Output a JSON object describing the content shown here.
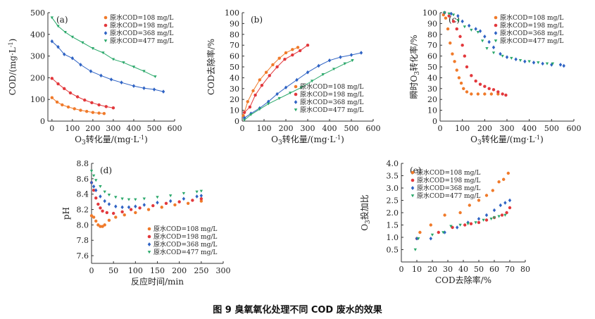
{
  "caption": "图 9   臭氧氧化处理不同 COD 废水的效果",
  "series_names": [
    "原水COD=108 mg/L",
    "原水COD=198 mg/L",
    "原水COD=368 mg/L",
    "原水COD=477 mg/L"
  ],
  "colors": [
    "#f07a2a",
    "#e2383c",
    "#2f63c4",
    "#2aa86a"
  ],
  "markers": [
    "circle",
    "circle",
    "diamond",
    "triangle-down"
  ],
  "chart_data": [
    {
      "panel": "(a)",
      "type": "scatter",
      "xlabel": "O3转化量/(mg·L⁻¹)",
      "ylabel": "COD/(mg·L⁻¹)",
      "xlim": [
        -20,
        600
      ],
      "ylim": [
        0,
        500
      ],
      "xticks": [
        0,
        100,
        200,
        300,
        400,
        500,
        600
      ],
      "yticks": [
        0,
        100,
        200,
        300,
        400,
        500
      ],
      "fit": true,
      "series": [
        {
          "name": "原水COD=108 mg/L",
          "x": [
            0,
            25,
            50,
            80,
            110,
            140,
            170,
            200,
            230,
            255
          ],
          "y": [
            108,
            88,
            75,
            65,
            57,
            50,
            45,
            40,
            37,
            35
          ]
        },
        {
          "name": "原水COD=198 mg/L",
          "x": [
            0,
            30,
            60,
            90,
            125,
            160,
            195,
            230,
            265,
            300
          ],
          "y": [
            197,
            172,
            150,
            130,
            112,
            97,
            85,
            75,
            67,
            61
          ]
        },
        {
          "name": "原水COD=368 mg/L",
          "x": [
            0,
            30,
            60,
            100,
            140,
            190,
            240,
            290,
            340,
            400,
            450,
            500,
            545
          ],
          "y": [
            368,
            342,
            308,
            290,
            260,
            230,
            210,
            192,
            178,
            162,
            152,
            146,
            136
          ]
        },
        {
          "name": "原水COD=477 mg/L",
          "x": [
            0,
            30,
            65,
            100,
            150,
            200,
            250,
            300,
            350,
            400,
            450,
            505
          ],
          "y": [
            477,
            438,
            410,
            388,
            362,
            335,
            315,
            285,
            270,
            250,
            230,
            205
          ]
        }
      ]
    },
    {
      "panel": "(b)",
      "type": "scatter",
      "xlabel": "O3转化量/(mg·L⁻¹)",
      "ylabel": "COD去除率/%",
      "xlim": [
        0,
        600
      ],
      "ylim": [
        0,
        100
      ],
      "xticks": [
        0,
        100,
        200,
        300,
        400,
        500,
        600
      ],
      "yticks": [
        0,
        10,
        20,
        30,
        40,
        50,
        60,
        70,
        80,
        90,
        100
      ],
      "fit": true,
      "series": [
        {
          "name": "原水COD=108 mg/L",
          "x": [
            5,
            25,
            50,
            80,
            110,
            140,
            170,
            200,
            230,
            255
          ],
          "y": [
            5,
            18,
            28,
            38,
            45,
            52,
            58,
            63,
            66,
            68
          ]
        },
        {
          "name": "原水COD=198 mg/L",
          "x": [
            10,
            35,
            60,
            90,
            125,
            160,
            195,
            230,
            265,
            300
          ],
          "y": [
            8,
            13,
            24,
            33,
            42,
            50,
            57,
            61,
            65,
            70
          ]
        },
        {
          "name": "原水COD=368 mg/L",
          "x": [
            10,
            40,
            80,
            120,
            160,
            200,
            250,
            300,
            350,
            400,
            450,
            500,
            545
          ],
          "y": [
            3,
            7,
            12,
            18,
            25,
            31,
            38,
            45,
            51,
            56,
            59,
            61,
            63
          ]
        },
        {
          "name": "原水COD=477 mg/L",
          "x": [
            10,
            40,
            80,
            120,
            170,
            220,
            270,
            320,
            370,
            420,
            470,
            505
          ],
          "y": [
            1,
            6,
            11,
            16,
            21,
            26,
            31,
            37,
            43,
            48,
            53,
            56
          ]
        }
      ]
    },
    {
      "panel": "(c)",
      "type": "scatter",
      "xlabel": "O3转化量/(mg·L⁻¹)",
      "ylabel": "瞬时O3转化率/%",
      "xlim": [
        0,
        600
      ],
      "ylim": [
        0,
        100
      ],
      "xticks": [
        0,
        100,
        200,
        300,
        400,
        500,
        600
      ],
      "yticks": [
        0,
        10,
        20,
        30,
        40,
        50,
        60,
        70,
        80,
        90,
        100
      ],
      "fit": false,
      "series": [
        {
          "name": "原水COD=108 mg/L",
          "x": [
            15,
            25,
            35,
            45,
            55,
            65,
            75,
            85,
            95,
            105,
            120,
            140,
            170,
            200,
            230,
            260
          ],
          "y": [
            98,
            95,
            85,
            72,
            62,
            55,
            47,
            40,
            35,
            30,
            27,
            25,
            25,
            25,
            25,
            25
          ]
        },
        {
          "name": "原水COD=198 mg/L",
          "x": [
            20,
            40,
            60,
            75,
            90,
            100,
            110,
            120,
            140,
            160,
            180,
            200,
            220,
            240,
            260,
            280,
            295
          ],
          "y": [
            100,
            97,
            92,
            85,
            78,
            70,
            60,
            50,
            42,
            37,
            34,
            32,
            30,
            29,
            27,
            25,
            24
          ]
        },
        {
          "name": "原水COD=368 mg/L",
          "x": [
            20,
            50,
            80,
            100,
            130,
            160,
            180,
            200,
            220,
            240,
            270,
            300,
            340,
            380,
            420,
            460,
            500,
            540,
            555
          ],
          "y": [
            100,
            99,
            97,
            92,
            88,
            85,
            83,
            78,
            73,
            68,
            62,
            59,
            57,
            55,
            54,
            53,
            52,
            52,
            51
          ]
        },
        {
          "name": "原水COD=477 mg/L",
          "x": [
            20,
            40,
            60,
            80,
            110,
            140,
            170,
            190,
            210,
            240,
            280,
            320,
            360,
            400,
            440,
            480,
            505
          ],
          "y": [
            100,
            99,
            98,
            93,
            87,
            84,
            82,
            74,
            67,
            63,
            60,
            58,
            56,
            55,
            54,
            53,
            53
          ]
        }
      ]
    },
    {
      "panel": "(d)",
      "type": "scatter",
      "xlabel": "反应时间/min",
      "ylabel": "pH",
      "xlim": [
        0,
        300
      ],
      "ylim": [
        7.5,
        8.8
      ],
      "xticks": [
        0,
        50,
        100,
        150,
        200,
        250,
        300
      ],
      "yticks": [
        7.6,
        7.8,
        8.0,
        8.2,
        8.4,
        8.6,
        8.8
      ],
      "fit": false,
      "series": [
        {
          "name": "原水COD=108 mg/L",
          "x": [
            0,
            5,
            10,
            15,
            20,
            25,
            30,
            40,
            55,
            75,
            100,
            130,
            160,
            190,
            220,
            250
          ],
          "y": [
            8.12,
            8.1,
            8.05,
            8.0,
            7.98,
            7.98,
            8.0,
            8.06,
            8.1,
            8.13,
            8.16,
            8.2,
            8.23,
            8.26,
            8.28,
            8.31
          ]
        },
        {
          "name": "原水COD=198 mg/L",
          "x": [
            0,
            5,
            10,
            15,
            20,
            25,
            35,
            50,
            70,
            90,
            110,
            140,
            170,
            200,
            230,
            250
          ],
          "y": [
            8.55,
            8.45,
            8.35,
            8.27,
            8.22,
            8.18,
            8.16,
            8.15,
            8.17,
            8.2,
            8.22,
            8.25,
            8.28,
            8.3,
            8.32,
            8.34
          ]
        },
        {
          "name": "原水COD=368 mg/L",
          "x": [
            0,
            5,
            10,
            20,
            30,
            40,
            55,
            70,
            85,
            100,
            120,
            150,
            180,
            210,
            240,
            250
          ],
          "y": [
            8.55,
            8.5,
            8.45,
            8.37,
            8.31,
            8.27,
            8.24,
            8.23,
            8.23,
            8.24,
            8.26,
            8.29,
            8.31,
            8.34,
            8.37,
            8.38
          ]
        },
        {
          "name": "原水COD=477 mg/L",
          "x": [
            0,
            5,
            10,
            20,
            30,
            40,
            55,
            70,
            85,
            100,
            120,
            150,
            180,
            210,
            240,
            250
          ],
          "y": [
            8.7,
            8.64,
            8.58,
            8.5,
            8.43,
            8.39,
            8.36,
            8.34,
            8.33,
            8.33,
            8.34,
            8.36,
            8.38,
            8.41,
            8.43,
            8.44
          ]
        }
      ]
    },
    {
      "panel": "(e)",
      "type": "scatter",
      "xlabel": "COD去除率/%",
      "ylabel": "O3投加比",
      "xlim": [
        0,
        80
      ],
      "ylim": [
        0,
        4.0
      ],
      "xticks": [
        0,
        10,
        20,
        30,
        40,
        50,
        60,
        70,
        80
      ],
      "yticks": [
        0.5,
        1.0,
        1.5,
        2.0,
        2.5,
        3.0,
        3.5,
        4.0
      ],
      "fit": false,
      "series": [
        {
          "name": "原水COD=108 mg/L",
          "x": [
            12,
            19,
            28,
            38,
            44,
            50,
            55,
            59,
            63,
            66,
            69
          ],
          "y": [
            1.2,
            1.5,
            1.9,
            2.0,
            2.3,
            2.5,
            2.7,
            2.9,
            3.25,
            3.35,
            3.6
          ]
        },
        {
          "name": "原水COD=198 mg/L",
          "x": [
            10,
            24,
            33,
            41,
            45,
            50,
            55,
            60,
            65,
            68,
            70
          ],
          "y": [
            0.95,
            1.2,
            1.4,
            1.5,
            1.55,
            1.6,
            1.7,
            1.8,
            1.9,
            2.0,
            2.2
          ]
        },
        {
          "name": "原水COD=368 mg/L",
          "x": [
            10,
            19,
            28,
            36,
            43,
            50,
            55,
            60,
            64,
            67,
            70
          ],
          "y": [
            0.95,
            0.95,
            1.2,
            1.4,
            1.6,
            1.75,
            1.9,
            2.1,
            2.3,
            2.4,
            2.5
          ]
        },
        {
          "name": "原水COD=477 mg/L",
          "x": [
            9,
            11,
            20,
            27,
            32,
            38,
            43,
            48,
            53,
            58,
            60,
            63,
            67
          ],
          "y": [
            0.5,
            0.95,
            1.1,
            1.2,
            1.45,
            1.5,
            1.55,
            1.6,
            1.7,
            1.75,
            1.8,
            1.85,
            1.9
          ]
        }
      ]
    }
  ]
}
